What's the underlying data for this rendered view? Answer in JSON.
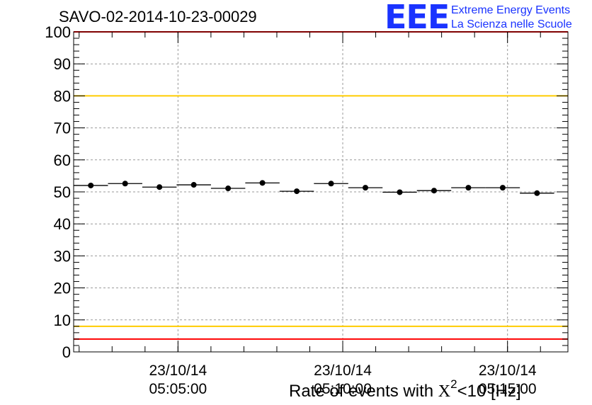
{
  "header": {
    "run_title": "SAVO-02-2014-10-23-00029"
  },
  "logo": {
    "mark": "EEE",
    "line1": "Extreme Energy Events",
    "line2": "La Scienza nelle Scuole",
    "color": "#1a33ff"
  },
  "chart_data": {
    "type": "scatter",
    "title": "SAVO-02-2014-10-23-00029",
    "xlabel": "Rate of events with χ² < 10 [Hz]",
    "xlabel_prefix": "Rate of events with ",
    "xlabel_chi": "X",
    "xlabel_sup": "2",
    "xlabel_suffix": "<10 [Hz]",
    "ylabel": "",
    "ylim": [
      0,
      100
    ],
    "yticks": [
      "0",
      "10",
      "20",
      "30",
      "40",
      "50",
      "60",
      "70",
      "80",
      "90",
      "100"
    ],
    "xticks": [
      {
        "date": "23/10/14",
        "time": "05:05:00"
      },
      {
        "date": "23/10/14",
        "time": "05:10:00"
      },
      {
        "date": "23/10/14",
        "time": "05:15:00"
      }
    ],
    "xlim_minutes": [
      "05:01:50",
      "05:16:50"
    ],
    "grid": true,
    "reference_lines": [
      {
        "value": 100,
        "color": "#ff0000"
      },
      {
        "value": 80,
        "color": "#ffcc00"
      },
      {
        "value": 8,
        "color": "#ffcc00"
      },
      {
        "value": 4,
        "color": "#ff0000"
      }
    ],
    "bin_width_seconds": 62.5,
    "series": [
      {
        "start_time": "05:01:50",
        "values": [
          52.0,
          52.6,
          51.5,
          52.2,
          51.1,
          52.8,
          50.2,
          52.6,
          51.3,
          49.9,
          50.4,
          51.3,
          51.3,
          49.6
        ]
      }
    ],
    "marker_color": "#000000"
  }
}
